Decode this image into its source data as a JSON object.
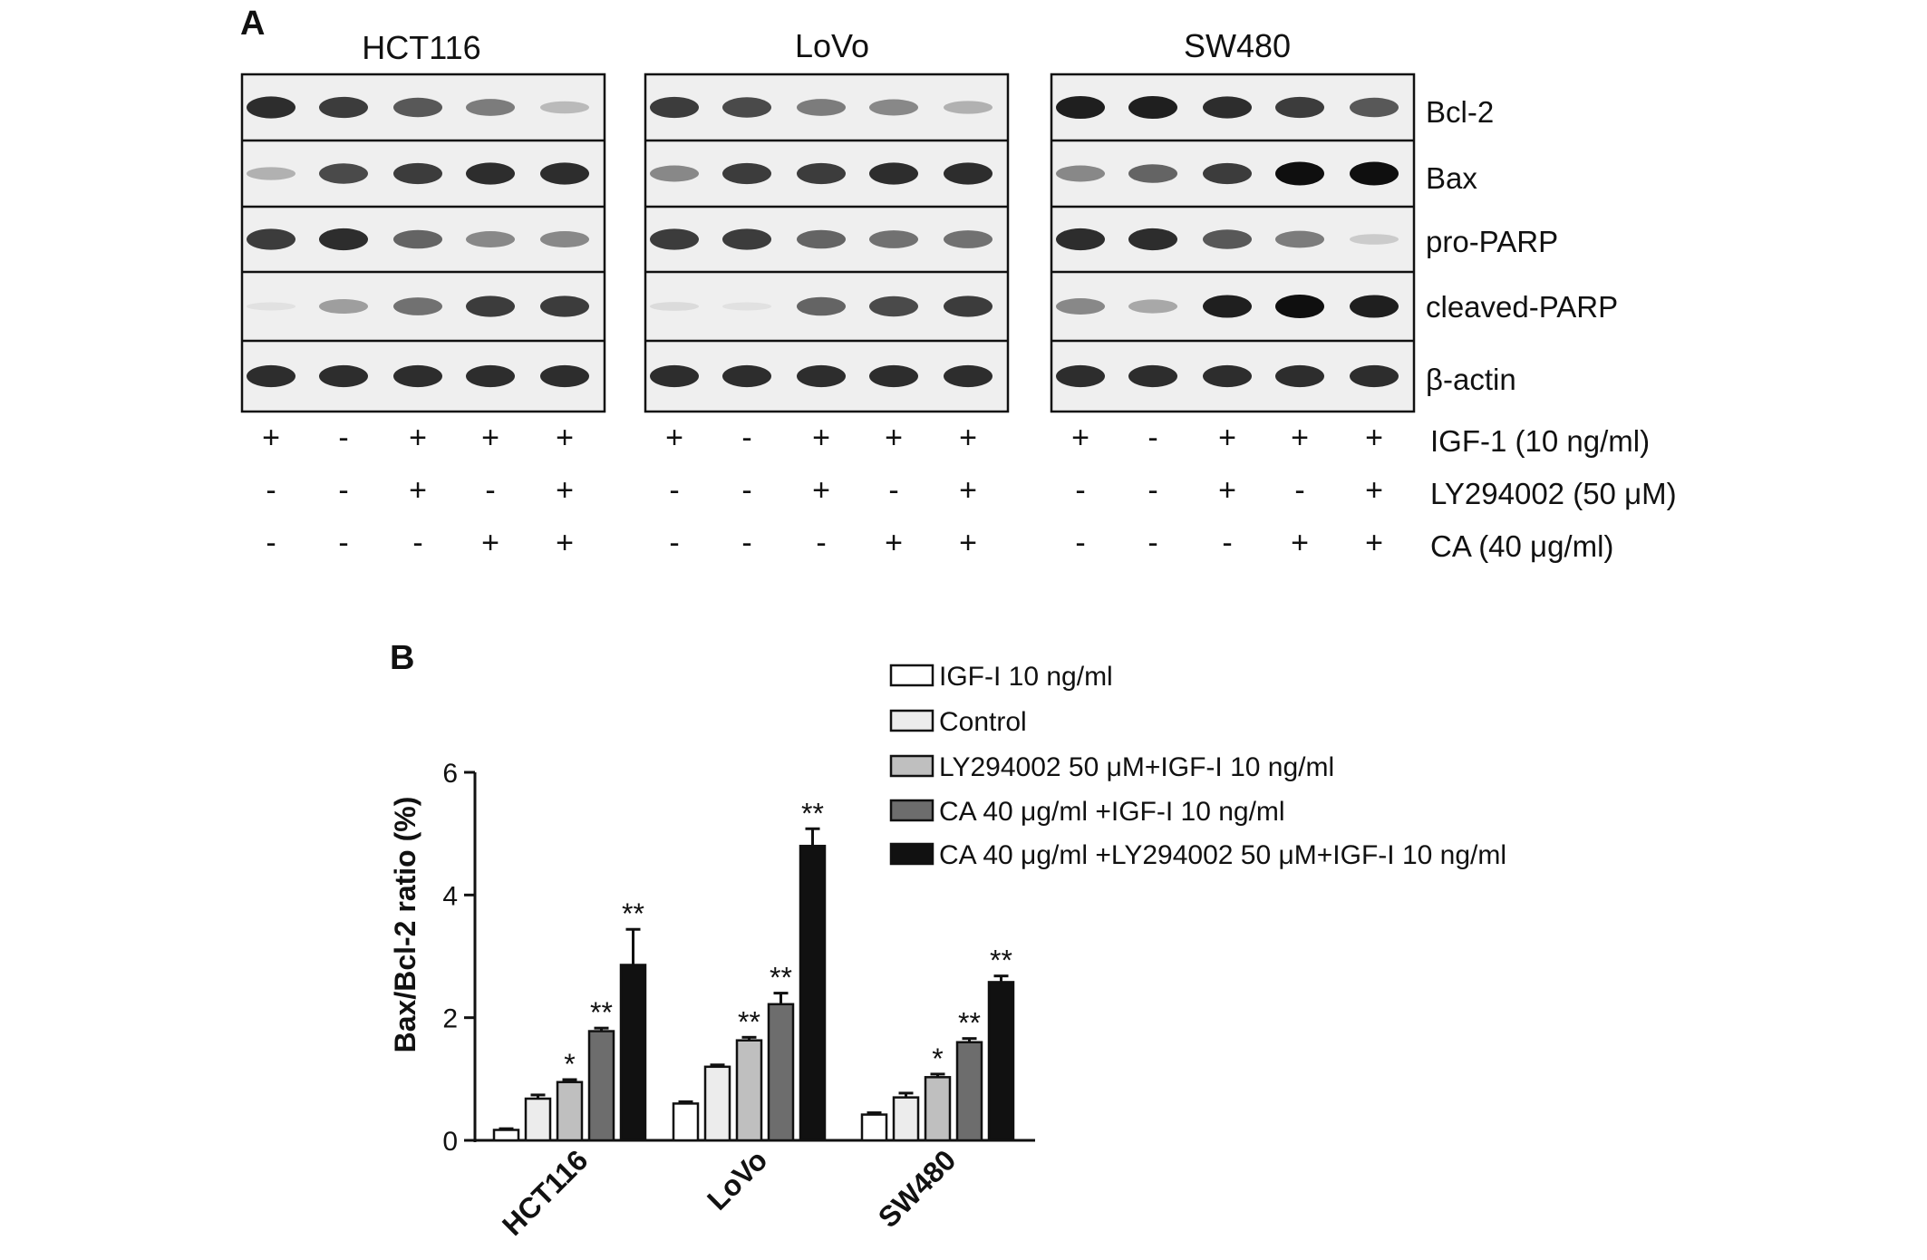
{
  "panel_a": {
    "label": "A",
    "cell_lines": [
      "HCT116",
      "LoVo",
      "SW480"
    ],
    "proteins": [
      "Bcl-2",
      "Bax",
      "pro-PARP",
      "cleaved-PARP",
      "β-actin"
    ],
    "treatments": [
      {
        "label": "IGF-1 (10 ng/ml)",
        "signs": [
          "+",
          "-",
          "+",
          "+",
          "+"
        ]
      },
      {
        "label": "LY294002 (50 μM)",
        "signs": [
          "-",
          "-",
          "+",
          "-",
          "+"
        ]
      },
      {
        "label": "CA  (40 μg/ml)",
        "signs": [
          "-",
          "-",
          "-",
          "+",
          "+"
        ]
      }
    ],
    "band_intensity": {
      "HCT116": [
        [
          0.9,
          0.85,
          0.75,
          0.6,
          0.3
        ],
        [
          0.35,
          0.8,
          0.85,
          0.9,
          0.9
        ],
        [
          0.85,
          0.9,
          0.7,
          0.55,
          0.55
        ],
        [
          0.05,
          0.45,
          0.65,
          0.85,
          0.85
        ],
        [
          0.9,
          0.9,
          0.9,
          0.9,
          0.9
        ]
      ],
      "LoVo": [
        [
          0.85,
          0.8,
          0.6,
          0.55,
          0.35
        ],
        [
          0.55,
          0.85,
          0.85,
          0.9,
          0.9
        ],
        [
          0.85,
          0.85,
          0.7,
          0.65,
          0.65
        ],
        [
          0.1,
          0.05,
          0.7,
          0.8,
          0.85
        ],
        [
          0.9,
          0.9,
          0.9,
          0.9,
          0.9
        ]
      ],
      "SW480": [
        [
          0.95,
          0.95,
          0.9,
          0.85,
          0.75
        ],
        [
          0.55,
          0.7,
          0.85,
          1.0,
          1.0
        ],
        [
          0.9,
          0.9,
          0.75,
          0.6,
          0.2
        ],
        [
          0.55,
          0.4,
          0.95,
          1.0,
          0.95
        ],
        [
          0.9,
          0.9,
          0.9,
          0.9,
          0.9
        ]
      ]
    }
  },
  "panel_b": {
    "label": "B"
  },
  "chart_data": {
    "type": "bar",
    "title": "",
    "xlabel": "",
    "ylabel": "Bax/Bcl-2 ratio (%)",
    "ylim": [
      0,
      6
    ],
    "yticks": [
      "0",
      "2",
      "4",
      "6"
    ],
    "categories": [
      "HCT116",
      "LoVo",
      "SW480"
    ],
    "legend_position": "top-right",
    "series": [
      {
        "name": "IGF-I 10 ng/ml",
        "color": "#ffffff",
        "values": [
          0.17,
          0.6,
          0.42
        ],
        "errors": [
          0.02,
          0.03,
          0.03
        ],
        "annotations": [
          "",
          "",
          ""
        ]
      },
      {
        "name": "Control",
        "color": "#ececec",
        "values": [
          0.68,
          1.2,
          0.7
        ],
        "errors": [
          0.06,
          0.03,
          0.07
        ],
        "annotations": [
          "",
          "",
          ""
        ]
      },
      {
        "name": "LY294002 50 μM+IGF-I 10 ng/ml",
        "color": "#bfbfbf",
        "values": [
          0.95,
          1.63,
          1.03
        ],
        "errors": [
          0.04,
          0.05,
          0.05
        ],
        "annotations": [
          "*",
          "**",
          "*"
        ]
      },
      {
        "name": "CA 40 μg/ml +IGF-I 10 ng/ml",
        "color": "#6d6d6d",
        "values": [
          1.78,
          2.22,
          1.6
        ],
        "errors": [
          0.05,
          0.18,
          0.06
        ],
        "annotations": [
          "**",
          "**",
          "**"
        ]
      },
      {
        "name": "CA 40 μg/ml +LY294002 50 μM+IGF-I 10 ng/ml",
        "color": "#111111",
        "values": [
          2.86,
          4.8,
          2.58
        ],
        "errors": [
          0.58,
          0.28,
          0.1
        ],
        "annotations": [
          "**",
          "**",
          "**"
        ]
      }
    ]
  }
}
